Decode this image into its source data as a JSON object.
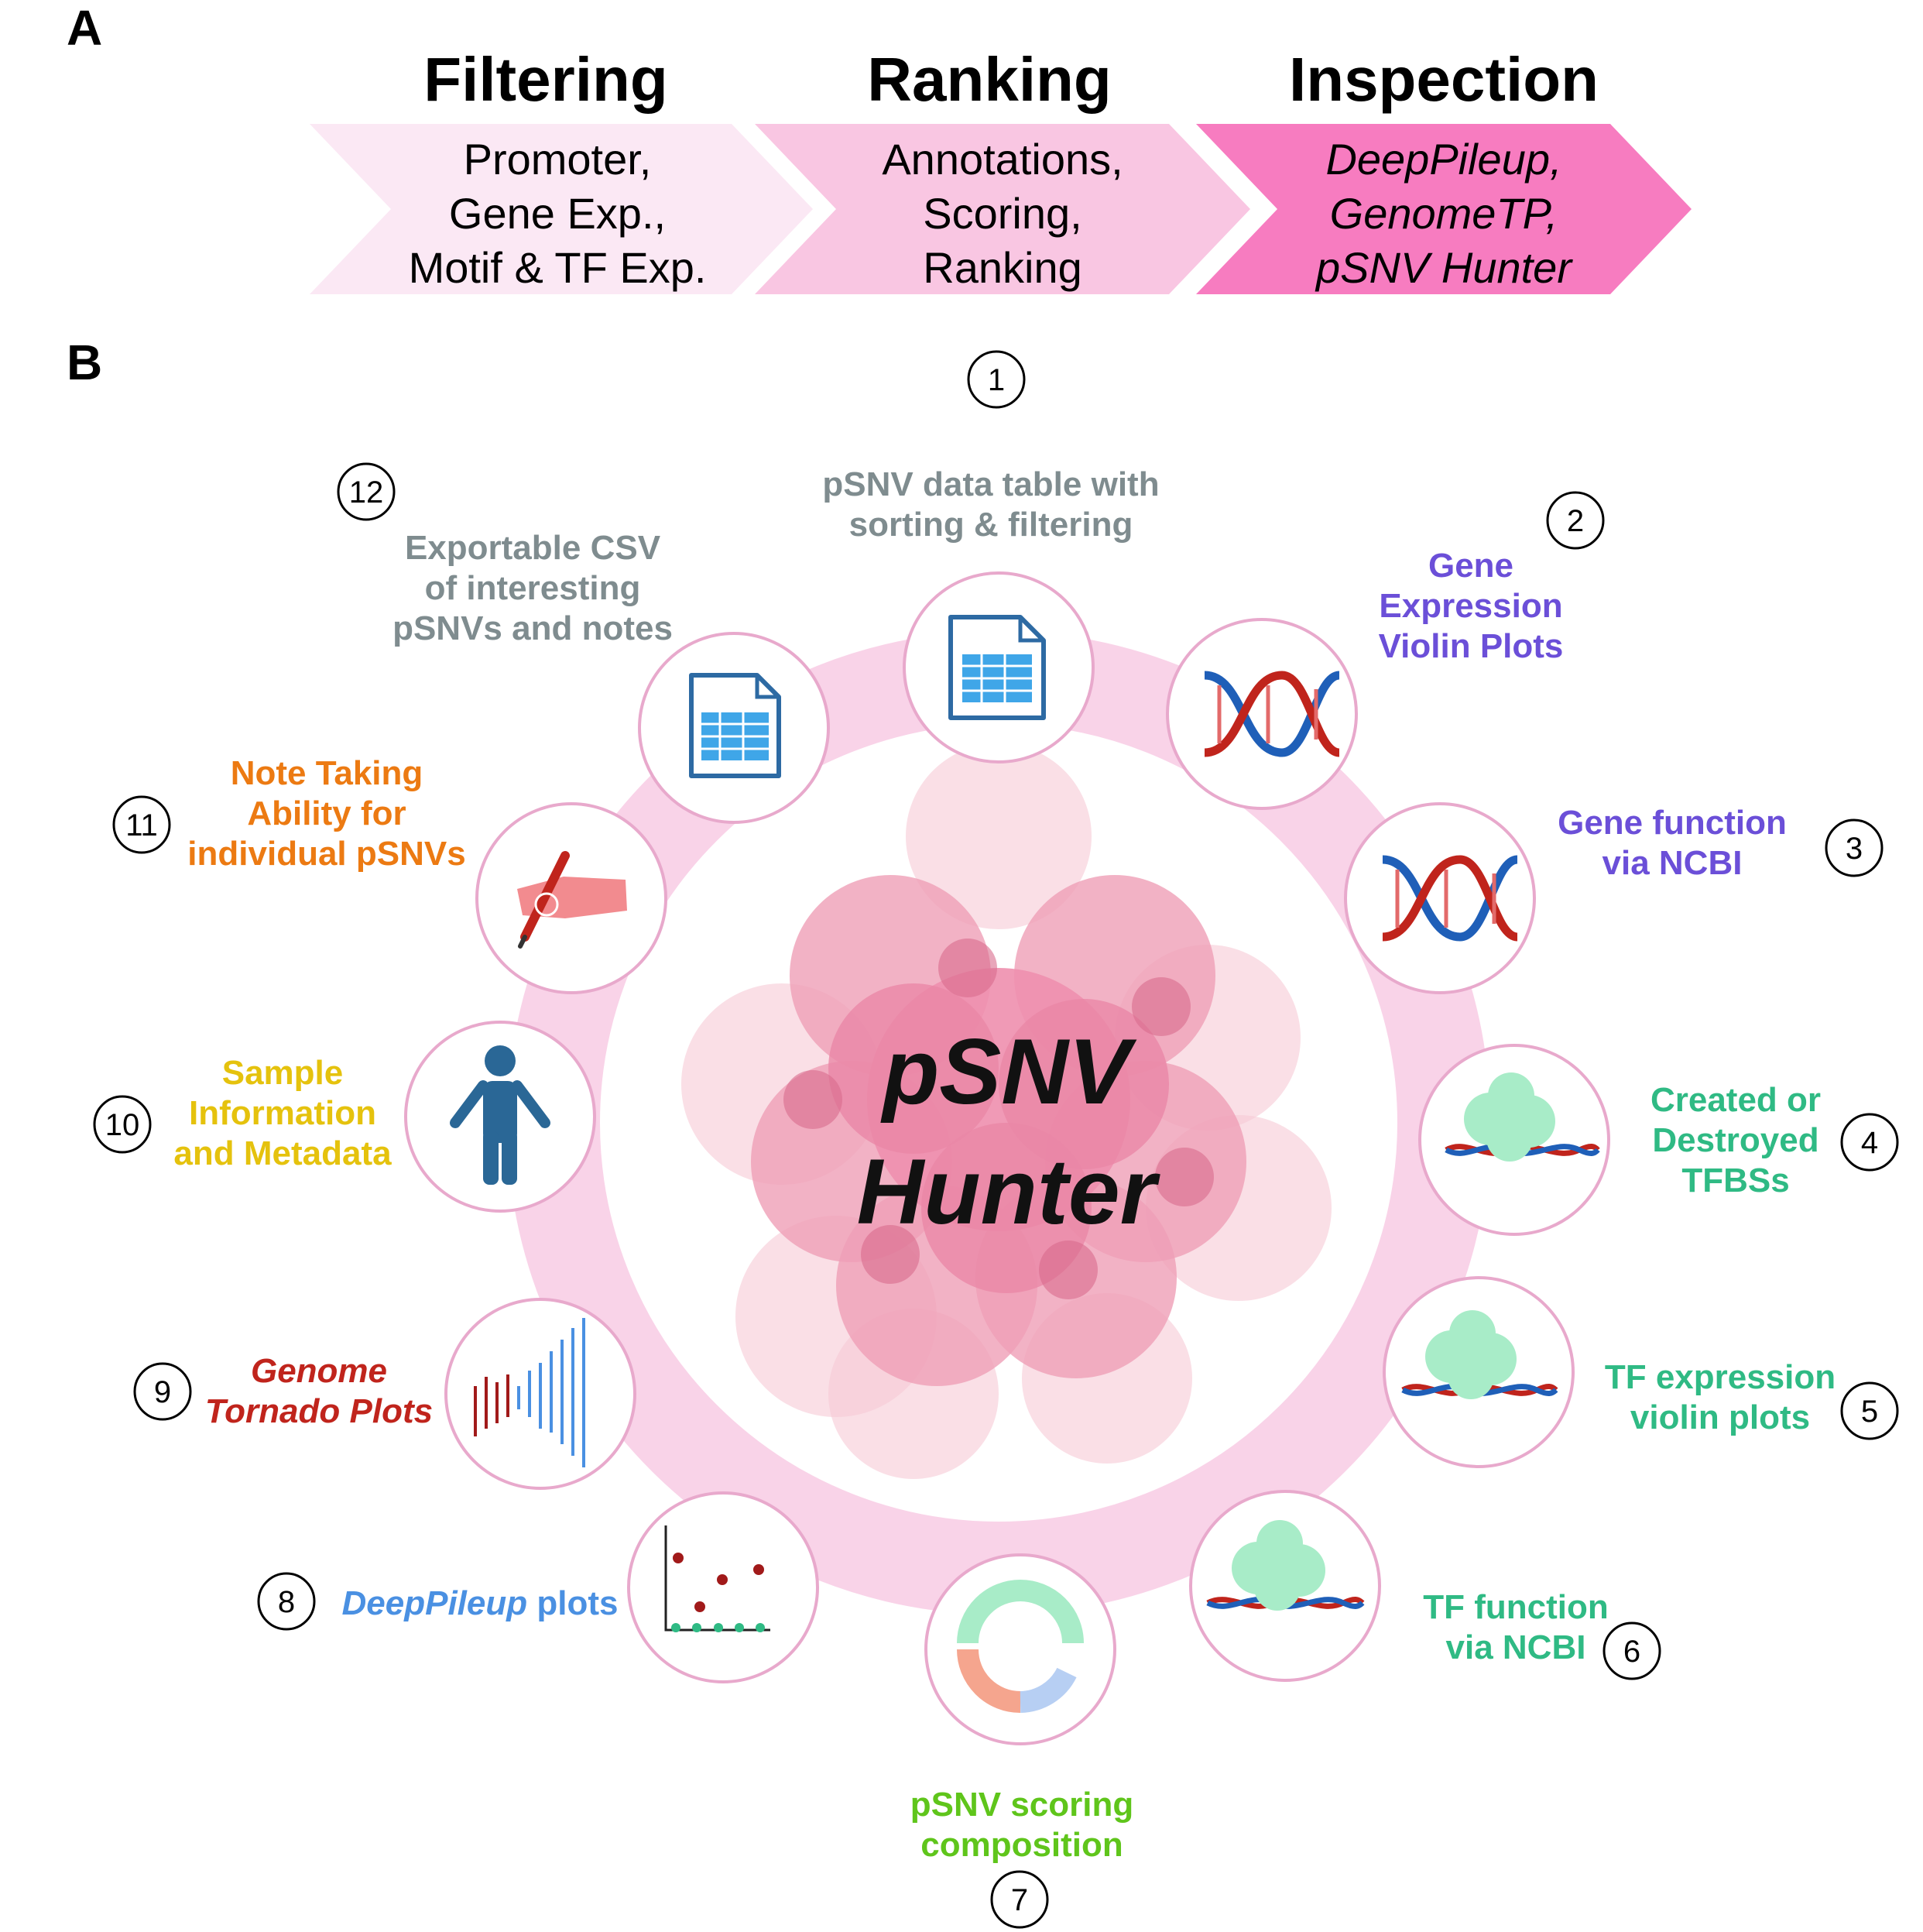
{
  "panels": {
    "a": "A",
    "b": "B"
  },
  "stages": [
    {
      "title": "Filtering",
      "lines": [
        "Promoter,",
        "Gene Exp.,",
        "Motif & TF Exp."
      ],
      "italic": false,
      "fill": "#fbe8f4"
    },
    {
      "title": "Ranking",
      "lines": [
        "Annotations,",
        "Scoring,",
        "Ranking"
      ],
      "italic": false,
      "fill": "#f9c6e2"
    },
    {
      "title": "Inspection",
      "lines": [
        "DeepPileup,",
        "GenomeTP,",
        "pSNV Hunter"
      ],
      "italic": true,
      "fill": "#f77cc0"
    }
  ],
  "hub": {
    "line1": "pSNV",
    "line2": "Hunter"
  },
  "features": [
    {
      "num": "1",
      "label_lines": [
        "pSNV data table with",
        "sorting & filtering"
      ],
      "color": "#7f8c8f",
      "icon": "spreadsheet-icon"
    },
    {
      "num": "2",
      "label_lines": [
        "Gene",
        "Expression",
        "Violin Plots"
      ],
      "color": "#6b4fd8",
      "icon": "dna-icon"
    },
    {
      "num": "3",
      "label_lines": [
        "Gene function",
        "via NCBI"
      ],
      "color": "#6b4fd8",
      "icon": "dna-icon"
    },
    {
      "num": "4",
      "label_lines": [
        "Created or",
        "Destroyed",
        "TFBSs"
      ],
      "color": "#2fba84",
      "icon": "protein-dna-icon"
    },
    {
      "num": "5",
      "label_lines": [
        "TF expression",
        "violin plots"
      ],
      "color": "#2fba84",
      "icon": "protein-dna-icon"
    },
    {
      "num": "6",
      "label_lines": [
        "TF function",
        "via NCBI"
      ],
      "color": "#2fba84",
      "icon": "protein-dna-icon"
    },
    {
      "num": "7",
      "label_lines": [
        "pSNV scoring",
        "composition"
      ],
      "color": "#5fc51b",
      "icon": "donut-chart-icon"
    },
    {
      "num": "8",
      "label_lines": [
        {
          "italic": "DeepPileup",
          "normal": " plots"
        }
      ],
      "color": "#4a90e2",
      "icon": "scatter-plot-icon"
    },
    {
      "num": "9",
      "label_lines": [
        "Genome",
        "Tornado Plots"
      ],
      "color": "#c0241c",
      "icon": "tornado-plot-icon"
    },
    {
      "num": "10",
      "label_lines": [
        "Sample",
        "Information",
        "and Metadata"
      ],
      "color": "#e5c20d",
      "icon": "person-icon"
    },
    {
      "num": "11",
      "label_lines": [
        "Note Taking",
        "Ability for",
        "individual pSNVs"
      ],
      "color": "#ec7a12",
      "icon": "writing-hand-icon"
    },
    {
      "num": "12",
      "label_lines": [
        "Exportable CSV",
        "of interesting",
        "pSNVs and notes"
      ],
      "color": "#7f8c8f",
      "icon": "spreadsheet-icon"
    }
  ],
  "colors": {
    "ring": "#f9d3e8",
    "node_border": "#e8a9cc",
    "cell": "#ee8fae",
    "dna_red": "#c0241c",
    "dna_blue": "#1f5fb8",
    "protein": "#a8ecc8"
  }
}
